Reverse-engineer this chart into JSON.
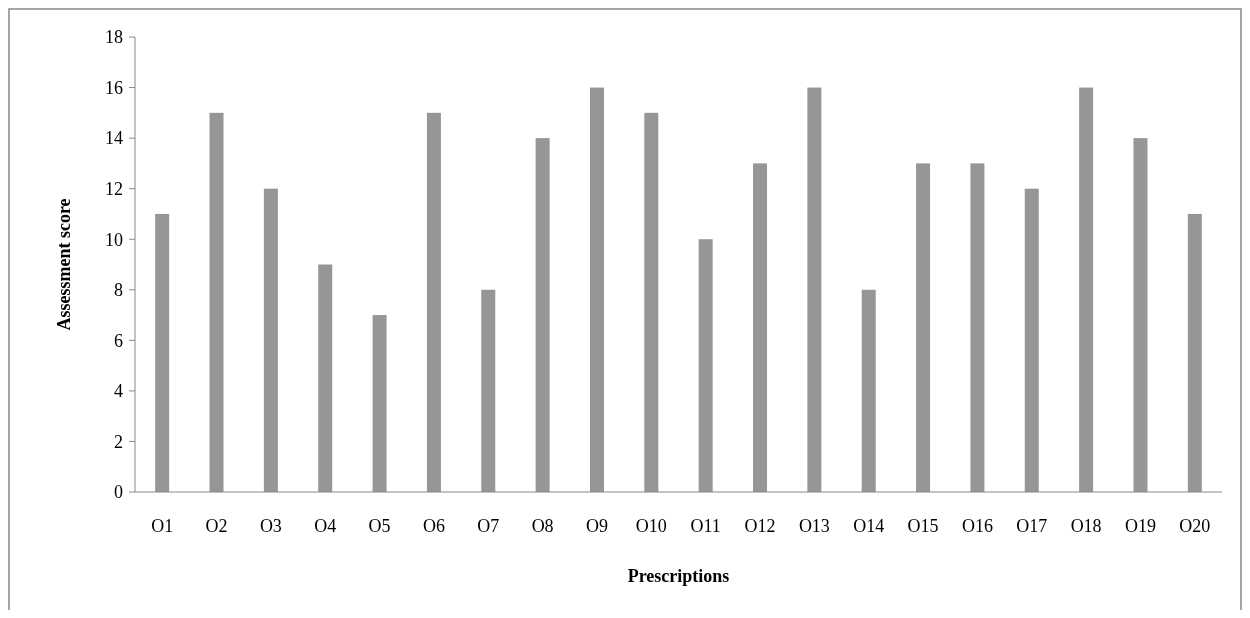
{
  "chart_data": {
    "type": "bar",
    "xlabel": "Prescriptions",
    "ylabel": "Assessment score",
    "categories": [
      "O1",
      "O2",
      "O3",
      "O4",
      "O5",
      "O6",
      "O7",
      "O8",
      "O9",
      "O10",
      "O11",
      "O12",
      "O13",
      "O14",
      "O15",
      "O16",
      "O17",
      "O18",
      "O19",
      "O20"
    ],
    "values": [
      11,
      15,
      12,
      9,
      7,
      15,
      8,
      14,
      16,
      15,
      10,
      13,
      16,
      8,
      13,
      13,
      12,
      16,
      14,
      11
    ],
    "color": "#969696",
    "ylim": [
      0,
      18
    ],
    "yticks": [
      0,
      2,
      4,
      6,
      8,
      10,
      12,
      14,
      16,
      18
    ],
    "grid": false
  }
}
